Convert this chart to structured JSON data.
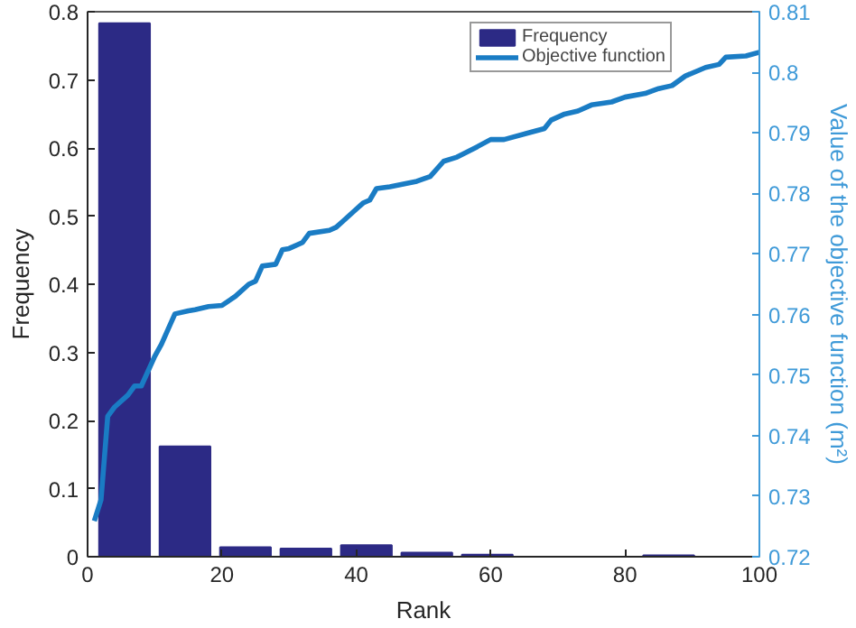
{
  "chart_data": {
    "type": "histogram",
    "xlabel": "Rank",
    "ylabel": "Frequency",
    "y2label": "Value of the objective function (m²)",
    "bins": [
      1,
      10,
      19,
      28,
      37,
      46,
      55,
      64,
      73,
      82,
      91,
      100
    ],
    "series": [
      {
        "name": "Frequency",
        "color": "#2c2a85",
        "values": [
          0.783,
          0.162,
          0.014,
          0.012,
          0.017,
          0.006,
          0.003,
          0,
          0,
          0.002,
          0
        ]
      },
      {
        "name": "Objective function",
        "type": "line",
        "axis": "y2",
        "color": "#1a7cc4",
        "x": [
          1,
          2,
          3,
          4,
          6,
          7,
          8,
          10,
          11,
          12,
          13,
          15,
          16,
          18,
          20,
          22,
          24,
          25,
          26,
          28,
          29,
          30,
          32,
          33,
          36,
          37,
          38,
          40,
          41,
          42,
          43,
          45,
          49,
          51,
          53,
          55,
          58,
          60,
          62,
          66,
          68,
          69,
          71,
          73,
          75,
          78,
          80,
          83,
          85,
          87,
          89,
          92,
          94,
          95,
          98,
          100
        ],
        "values": [
          0.7259,
          0.7294,
          0.7432,
          0.7447,
          0.7467,
          0.7482,
          0.7482,
          0.7531,
          0.7551,
          0.7576,
          0.7601,
          0.7606,
          0.7608,
          0.7613,
          0.7615,
          0.763,
          0.765,
          0.7655,
          0.768,
          0.7683,
          0.7707,
          0.7709,
          0.7719,
          0.7734,
          0.7739,
          0.7744,
          0.7754,
          0.7774,
          0.7784,
          0.7789,
          0.7808,
          0.7811,
          0.782,
          0.7828,
          0.7853,
          0.786,
          0.7877,
          0.7889,
          0.7889,
          0.7901,
          0.7907,
          0.7921,
          0.7931,
          0.7936,
          0.7946,
          0.7951,
          0.7959,
          0.7965,
          0.7973,
          0.7978,
          0.7994,
          0.8008,
          0.8013,
          0.8025,
          0.8027,
          0.8033
        ]
      }
    ],
    "xlim": [
      0,
      100
    ],
    "xticks": [
      0,
      20,
      40,
      60,
      80,
      100
    ],
    "ylim": [
      0,
      0.8
    ],
    "yticks": [
      0,
      0.1,
      0.2,
      0.3,
      0.4,
      0.5,
      0.6,
      0.7,
      0.8
    ],
    "y2lim": [
      0.72,
      0.81
    ],
    "y2ticks": [
      0.72,
      0.73,
      0.74,
      0.75,
      0.76,
      0.77,
      0.78,
      0.79,
      0.8,
      0.81
    ],
    "legend": "top right",
    "grid": false
  }
}
